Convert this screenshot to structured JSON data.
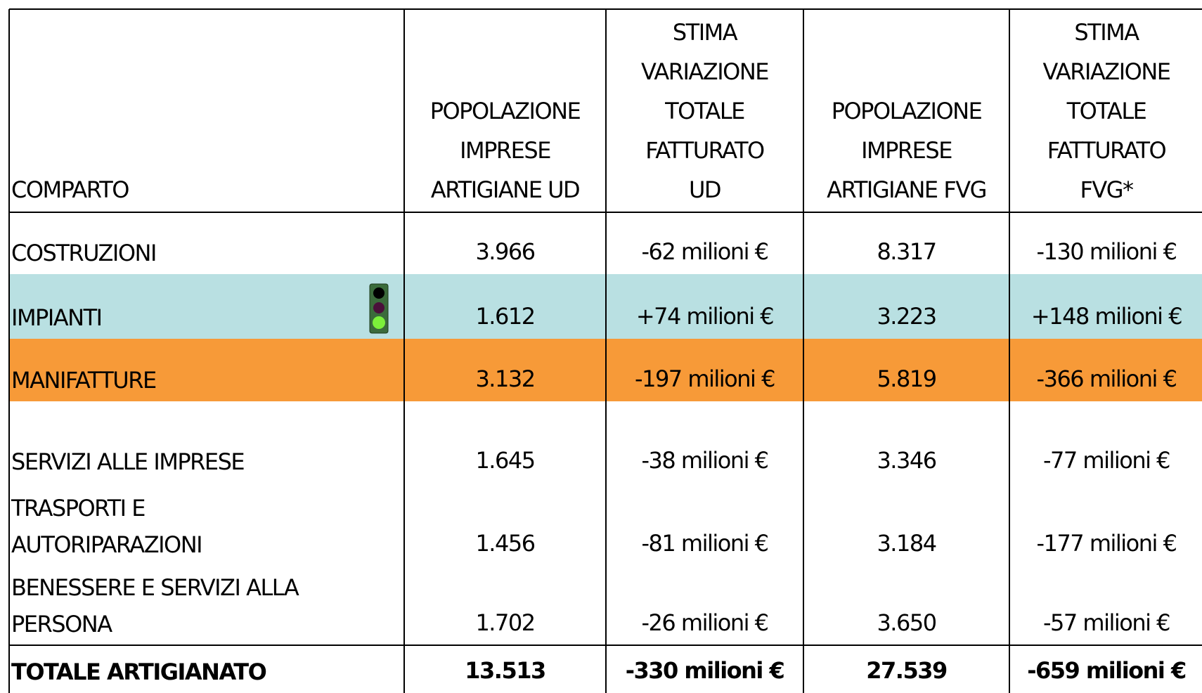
{
  "table": {
    "headers": [
      [
        "COMPARTO"
      ],
      [
        "POPOLAZIONE",
        "IMPRESE",
        "ARTIGIANE UD"
      ],
      [
        "STIMA",
        "VARIAZIONE",
        "TOTALE",
        "FATTURATO",
        "UD"
      ],
      [
        "POPOLAZIONE",
        "IMPRESE",
        "ARTIGIANE FVG"
      ],
      [
        "STIMA",
        "VARIAZIONE",
        "TOTALE",
        "FATTURATO",
        "FVG*"
      ]
    ],
    "rows": [
      {
        "comparto": [
          "COSTRUZIONI"
        ],
        "values": [
          "3.966",
          "-62 milioni €",
          "8.317",
          "-130 milioni €"
        ]
      },
      {
        "comparto": [
          "IMPIANTI"
        ],
        "values": [
          "1.612",
          "+74 milioni €",
          "3.223",
          "+148 milioni €"
        ]
      },
      {
        "comparto": [
          "MANIFATTURE"
        ],
        "values": [
          "3.132",
          "-197 milioni €",
          "5.819",
          "-366 milioni €"
        ]
      },
      {
        "comparto": [
          "SERVIZI ALLE IMPRESE"
        ],
        "values": [
          "1.645",
          "-38 milioni €",
          "3.346",
          "-77 milioni €"
        ]
      },
      {
        "comparto": [
          "TRASPORTI E",
          "AUTORIPARAZIONI"
        ],
        "values": [
          "1.456",
          "-81 milioni €",
          "3.184",
          "-177 milioni €"
        ]
      },
      {
        "comparto": [
          "BENESSERE E SERVIZI ALLA",
          "PERSONA"
        ],
        "values": [
          "1.702",
          "-26 milioni €",
          "3.650",
          "-57 milioni €"
        ]
      },
      {
        "comparto": [
          "TOTALE ARTIGIANATO"
        ],
        "values": [
          "13.513",
          "-330 milioni €",
          "27.539",
          "-659 milioni €"
        ]
      }
    ]
  }
}
